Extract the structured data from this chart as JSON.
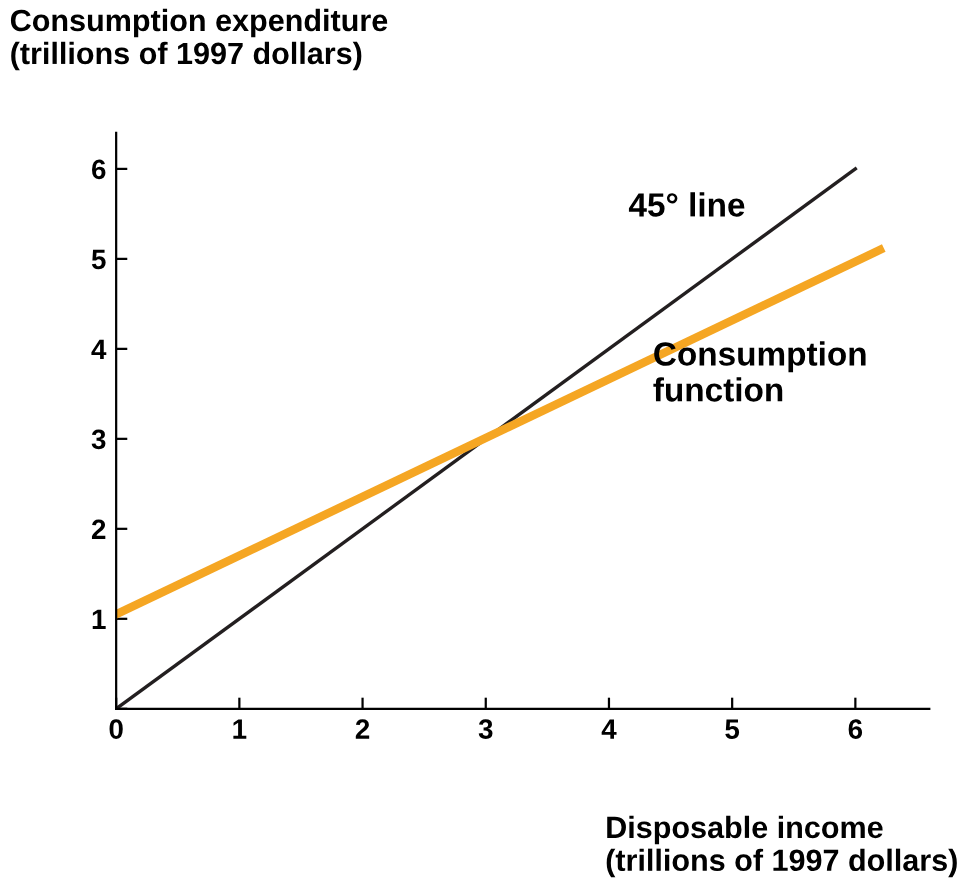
{
  "chart_data": {
    "type": "line",
    "ylabel": "Consumption expenditure\n(trillions of 1997 dollars)",
    "xlabel": "Disposable income\n(trillions of 1997 dollars)",
    "series": [
      {
        "x": [
          0,
          6
        ],
        "values": [
          0,
          6
        ],
        "color": "#231f20"
      },
      {
        "x": [
          0,
          6.2
        ],
        "values": [
          1.05,
          5.1
        ],
        "color": "#f5a623"
      }
    ],
    "xlim": [
      0,
      6.6
    ],
    "ylim": [
      0,
      6.4
    ],
    "xticks": [
      0,
      1,
      2,
      3,
      4,
      5,
      6
    ],
    "yticks": [
      {
        "value": 0,
        "label": null
      },
      1,
      2,
      3,
      4,
      5,
      6
    ],
    "grid": false,
    "annotations": [
      "45° line",
      "Consumption\nfunction"
    ]
  }
}
